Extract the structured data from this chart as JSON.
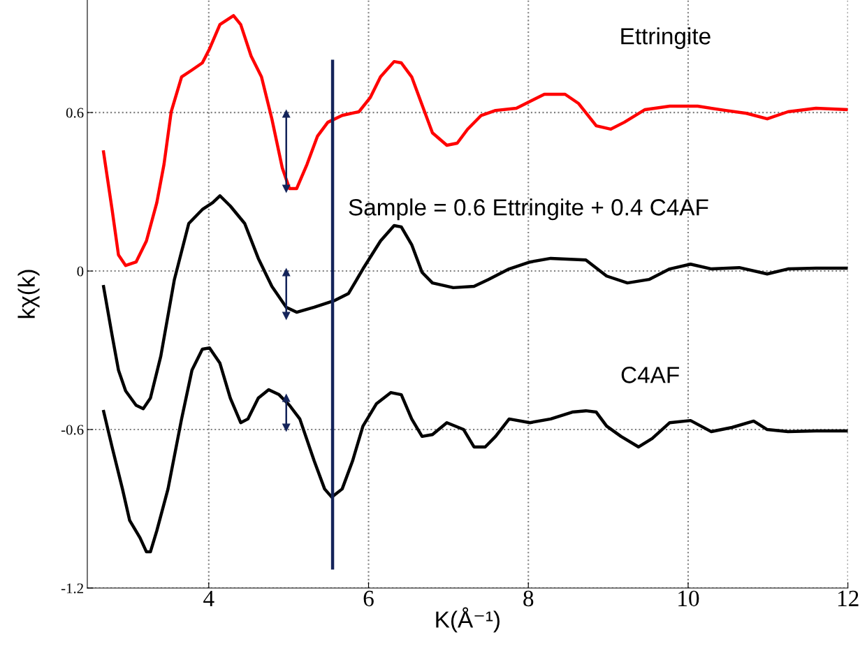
{
  "chart_data": {
    "type": "line",
    "xlabel": "K(Å⁻¹)",
    "ylabel": "kχ(k)",
    "xlim": [
      2.48,
      12.0
    ],
    "ylim": [
      -1.2,
      1.026
    ],
    "xticks": [
      4,
      6,
      8,
      10,
      12
    ],
    "yticks": [
      -1.2,
      -0.6,
      0,
      0.6
    ],
    "grid": true,
    "legend": false,
    "line_style": "solid",
    "series": [
      {
        "name": "Ettringite",
        "color": "#ff0000",
        "x": [
          2.68,
          2.79,
          2.87,
          2.96,
          3.09,
          3.22,
          3.35,
          3.44,
          3.53,
          3.66,
          3.79,
          3.92,
          4.01,
          4.14,
          4.31,
          4.4,
          4.53,
          4.66,
          4.79,
          4.92,
          5.01,
          5.1,
          5.23,
          5.36,
          5.49,
          5.67,
          5.88,
          6.02,
          6.15,
          6.32,
          6.41,
          6.54,
          6.67,
          6.8,
          6.98,
          7.11,
          7.24,
          7.41,
          7.59,
          7.85,
          8.02,
          8.2,
          8.46,
          8.63,
          8.85,
          9.03,
          9.2,
          9.46,
          9.77,
          10.12,
          10.47,
          10.73,
          10.99,
          11.25,
          11.6,
          12.0
        ],
        "values": [
          0.457,
          0.233,
          0.061,
          0.021,
          0.034,
          0.114,
          0.259,
          0.404,
          0.603,
          0.735,
          0.761,
          0.788,
          0.841,
          0.933,
          0.967,
          0.933,
          0.814,
          0.735,
          0.576,
          0.391,
          0.312,
          0.312,
          0.404,
          0.51,
          0.563,
          0.589,
          0.603,
          0.656,
          0.735,
          0.793,
          0.788,
          0.735,
          0.629,
          0.523,
          0.476,
          0.484,
          0.537,
          0.589,
          0.608,
          0.616,
          0.642,
          0.669,
          0.669,
          0.634,
          0.55,
          0.537,
          0.563,
          0.611,
          0.624,
          0.624,
          0.608,
          0.597,
          0.576,
          0.603,
          0.616,
          0.611
        ]
      },
      {
        "name": "Sample = 0.6 Ettringite + 0.4 C4AF",
        "color": "#000000",
        "x": [
          2.68,
          2.79,
          2.87,
          2.96,
          3.09,
          3.18,
          3.27,
          3.4,
          3.57,
          3.75,
          3.92,
          4.05,
          4.14,
          4.27,
          4.45,
          4.62,
          4.79,
          4.97,
          5.1,
          5.32,
          5.58,
          5.75,
          5.93,
          6.15,
          6.32,
          6.41,
          6.54,
          6.67,
          6.8,
          7.06,
          7.32,
          7.5,
          7.76,
          8.02,
          8.28,
          8.72,
          8.98,
          9.24,
          9.51,
          9.77,
          10.03,
          10.29,
          10.64,
          10.99,
          11.25,
          11.6,
          12.0
        ],
        "values": [
          -0.053,
          -0.243,
          -0.375,
          -0.454,
          -0.508,
          -0.521,
          -0.481,
          -0.322,
          -0.032,
          0.18,
          0.233,
          0.259,
          0.285,
          0.246,
          0.18,
          0.048,
          -0.058,
          -0.137,
          -0.156,
          -0.137,
          -0.111,
          -0.085,
          0.008,
          0.114,
          0.172,
          0.167,
          0.1,
          -0.005,
          -0.045,
          -0.063,
          -0.058,
          -0.032,
          0.008,
          0.034,
          0.048,
          0.042,
          -0.019,
          -0.045,
          -0.032,
          0.008,
          0.026,
          0.008,
          0.013,
          -0.011,
          0.008,
          0.011,
          0.011
        ]
      },
      {
        "name": "C4AF",
        "color": "#000000",
        "x": [
          2.68,
          2.79,
          2.92,
          3.01,
          3.14,
          3.22,
          3.27,
          3.35,
          3.49,
          3.66,
          3.79,
          3.92,
          4.01,
          4.14,
          4.27,
          4.4,
          4.49,
          4.62,
          4.75,
          4.88,
          5.01,
          5.14,
          5.32,
          5.45,
          5.54,
          5.67,
          5.8,
          5.93,
          6.1,
          6.28,
          6.41,
          6.54,
          6.67,
          6.8,
          6.98,
          7.19,
          7.32,
          7.46,
          7.59,
          7.76,
          8.02,
          8.28,
          8.55,
          8.72,
          8.85,
          8.98,
          9.16,
          9.38,
          9.55,
          9.77,
          10.03,
          10.29,
          10.55,
          10.82,
          10.99,
          11.25,
          11.6,
          12.0
        ],
        "values": [
          -0.526,
          -0.666,
          -0.825,
          -0.944,
          -1.01,
          -1.063,
          -1.063,
          -0.983,
          -0.825,
          -0.56,
          -0.375,
          -0.296,
          -0.291,
          -0.349,
          -0.481,
          -0.574,
          -0.56,
          -0.481,
          -0.449,
          -0.468,
          -0.508,
          -0.56,
          -0.719,
          -0.825,
          -0.856,
          -0.825,
          -0.719,
          -0.587,
          -0.502,
          -0.46,
          -0.468,
          -0.56,
          -0.626,
          -0.619,
          -0.574,
          -0.6,
          -0.666,
          -0.666,
          -0.626,
          -0.56,
          -0.574,
          -0.56,
          -0.534,
          -0.529,
          -0.534,
          -0.587,
          -0.626,
          -0.666,
          -0.634,
          -0.574,
          -0.566,
          -0.608,
          -0.592,
          -0.568,
          -0.6,
          -0.608,
          -0.605,
          -0.605
        ]
      },
      {
        "color": "#14245a",
        "x": [
          5.55,
          5.55
        ],
        "values": [
          0.8,
          -1.13
        ]
      },
      {
        "color": "#14245a",
        "x": [
          4.97,
          4.97
        ],
        "values": [
          0.595,
          0.312
        ],
        "marker": "triangle"
      },
      {
        "color": "#14245a",
        "x": [
          4.97,
          4.97
        ],
        "values": [
          -0.005,
          -0.169
        ],
        "marker": "triangle"
      },
      {
        "color": "#14245a",
        "x": [
          4.97,
          4.97
        ],
        "values": [
          -0.481,
          -0.592
        ],
        "marker": "triangle"
      }
    ]
  }
}
